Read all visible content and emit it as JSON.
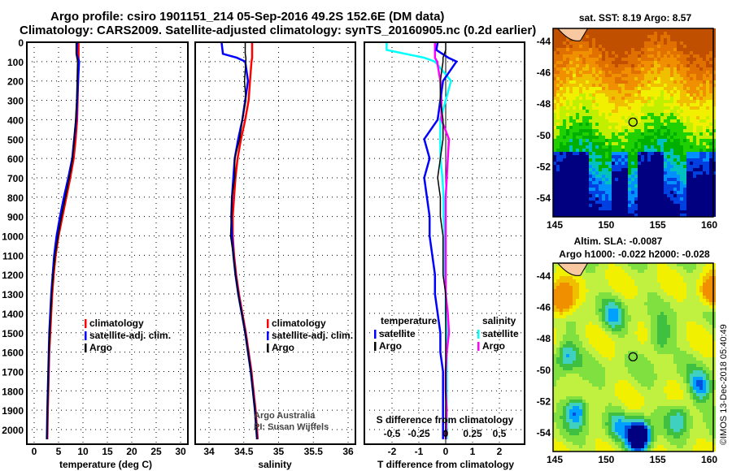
{
  "header": {
    "line1": "Argo profile: csiro 1901151_214 05-Sep-2016 49.2S 152.6E (DM data)",
    "line2": "Climatology: CARS2009. Satellite-adjusted climatology: synTS_20160905.nc (0.2d earlier)"
  },
  "credit": "©IMOS 13-Dec-2018 05:40:49",
  "colors": {
    "climatology": "#ff0000",
    "satellite": "#0000ff",
    "argo": "#000000",
    "sal_sat": "#00ffff",
    "sal_argo": "#ff00ff"
  },
  "chart_data": [
    {
      "type": "line",
      "id": "temperature",
      "xlabel": "temperature (deg C)",
      "xlim": [
        -1,
        31
      ],
      "ylim": [
        2050,
        0
      ],
      "xticks": [
        "0",
        "5",
        "10",
        "15",
        "20",
        "25",
        "30"
      ],
      "xtickvals": [
        0,
        5,
        10,
        15,
        20,
        25,
        30
      ],
      "yticks": [
        "0",
        "100",
        "200",
        "300",
        "400",
        "500",
        "600",
        "700",
        "800",
        "900",
        "1000",
        "1100",
        "1200",
        "1300",
        "1400",
        "1500",
        "1600",
        "1700",
        "1800",
        "1900",
        "2000"
      ],
      "legend": [
        "climatology",
        "satellite-adj. clim.",
        "Argo"
      ],
      "depth": [
        0,
        60,
        100,
        200,
        300,
        400,
        500,
        600,
        700,
        800,
        900,
        1000,
        1100,
        1200,
        1300,
        1400,
        1500,
        1600,
        1700,
        1800,
        1900,
        2050
      ],
      "series": [
        {
          "name": "climatology",
          "values": [
            9.1,
            9.1,
            9.1,
            9.0,
            8.9,
            8.8,
            8.5,
            8.1,
            7.4,
            6.6,
            5.8,
            5.0,
            4.4,
            4.0,
            3.7,
            3.5,
            3.3,
            3.1,
            3.0,
            2.9,
            2.8,
            2.7
          ]
        },
        {
          "name": "satellite-adj. clim.",
          "values": [
            8.8,
            8.7,
            9.2,
            9.0,
            8.8,
            8.6,
            8.2,
            7.8,
            7.0,
            6.1,
            5.3,
            4.6,
            4.1,
            3.8,
            3.5,
            3.3,
            3.1,
            3.0,
            2.9,
            2.8,
            2.7,
            2.6
          ]
        },
        {
          "name": "Argo",
          "values": [
            8.6,
            8.6,
            8.9,
            8.8,
            8.7,
            8.5,
            8.2,
            7.9,
            7.2,
            6.4,
            5.6,
            4.9,
            4.3,
            3.9,
            3.6,
            3.4,
            3.2,
            3.0,
            2.9,
            2.8,
            2.7,
            2.6
          ]
        }
      ]
    },
    {
      "type": "line",
      "id": "salinity",
      "xlabel": "salinity",
      "xlim": [
        33.8,
        36.1
      ],
      "ylim": [
        2050,
        0
      ],
      "xticks": [
        "34",
        "34.5",
        "35",
        "35.5",
        "36"
      ],
      "xtickvals": [
        34,
        34.5,
        35,
        35.5,
        36
      ],
      "legend": [
        "climatology",
        "satellite-adj. clim.",
        "Argo"
      ],
      "annotation": [
        "Argo Australia",
        "PI: Susan Wijffels"
      ],
      "depth": [
        0,
        60,
        80,
        100,
        200,
        300,
        400,
        500,
        600,
        700,
        800,
        900,
        1000,
        1100,
        1200,
        1300,
        1400,
        1500,
        1600,
        1700,
        1800,
        1900,
        2050
      ],
      "series": [
        {
          "name": "climatology",
          "values": [
            34.62,
            34.62,
            34.62,
            34.61,
            34.59,
            34.57,
            34.52,
            34.46,
            34.41,
            34.38,
            34.36,
            34.34,
            34.34,
            34.36,
            34.39,
            34.43,
            34.48,
            34.53,
            34.57,
            34.61,
            34.64,
            34.67,
            34.7
          ]
        },
        {
          "name": "satellite-adj. clim.",
          "values": [
            34.18,
            34.2,
            34.4,
            34.52,
            34.56,
            34.52,
            34.48,
            34.42,
            34.37,
            34.35,
            34.33,
            34.32,
            34.33,
            34.35,
            34.38,
            34.42,
            34.47,
            34.52,
            34.56,
            34.6,
            34.63,
            34.66,
            34.69
          ]
        },
        {
          "name": "Argo",
          "values": [
            34.52,
            34.52,
            34.53,
            34.53,
            34.51,
            34.53,
            34.48,
            34.44,
            34.37,
            34.37,
            34.33,
            34.32,
            34.31,
            34.35,
            34.38,
            34.42,
            34.47,
            34.52,
            34.56,
            34.6,
            34.63,
            34.66,
            34.69
          ]
        }
      ]
    },
    {
      "type": "line",
      "id": "difference",
      "xlabel": "T difference from climatology",
      "xlim": [
        -3,
        3
      ],
      "ylim": [
        2050,
        0
      ],
      "xticks": [
        "-2",
        "-1",
        "0",
        "1",
        "2"
      ],
      "xtickvals": [
        -2,
        -1,
        0,
        1,
        2
      ],
      "x2label": "S difference from climatology",
      "x2ticks": [
        "-0.5",
        "-0.25",
        "0",
        "0.25",
        "0.5"
      ],
      "legend_temperature": [
        "temperature",
        "satellite",
        "Argo"
      ],
      "legend_salinity": [
        "salinity",
        "satellite",
        "Argo"
      ],
      "depth": [
        0,
        40,
        80,
        100,
        200,
        300,
        400,
        500,
        600,
        700,
        800,
        900,
        1000,
        1100,
        1200,
        1300,
        1400,
        1500,
        1600,
        1700,
        1800,
        1900,
        2050
      ],
      "series": [
        {
          "name": "temperature satellite",
          "values": [
            -0.3,
            -0.35,
            0.1,
            0.4,
            -0.1,
            -0.2,
            -0.3,
            -0.8,
            -0.6,
            -0.8,
            -0.7,
            -0.6,
            -0.6,
            -0.5,
            -0.4,
            -0.4,
            -0.3,
            -0.2,
            -0.2,
            -0.1,
            -0.1,
            -0.1,
            -0.1
          ]
        },
        {
          "name": "temperature Argo",
          "values": [
            0.0,
            0.0,
            -0.1,
            -0.1,
            -0.2,
            -0.2,
            -0.1,
            -0.1,
            -0.2,
            -0.3,
            -0.2,
            -0.2,
            -0.1,
            -0.1,
            -0.1,
            0.0,
            0.0,
            0.0,
            0.0,
            0.0,
            0.0,
            0.0,
            0.0
          ]
        },
        {
          "name": "salinity satellite",
          "values": [
            -0.55,
            -0.55,
            -0.2,
            -0.1,
            0.05,
            0.0,
            -0.05,
            -0.05,
            -0.05,
            -0.03,
            -0.02,
            -0.02,
            -0.01,
            -0.01,
            -0.01,
            0.0,
            0.0,
            0.01,
            0.01,
            0.01,
            0.01,
            0.01,
            0.01
          ]
        },
        {
          "name": "salinity Argo",
          "values": [
            -0.1,
            -0.1,
            -0.1,
            -0.08,
            -0.05,
            -0.04,
            -0.04,
            0.03,
            0.02,
            0.01,
            0.0,
            0.0,
            0.0,
            0.0,
            0.0,
            0.0,
            0.02,
            0.03,
            0.01,
            0.0,
            0.0,
            0.01,
            0.0
          ]
        }
      ]
    },
    {
      "type": "heatmap",
      "id": "sst-map",
      "title": "sat. SST: 8.19 Argo: 8.57",
      "xticks": [
        "145",
        "150",
        "155",
        "160"
      ],
      "yticks": [
        "-44",
        "-46",
        "-48",
        "-50",
        "-52",
        "-54"
      ],
      "marker": {
        "lon": 152.6,
        "lat": -49.2
      }
    },
    {
      "type": "heatmap",
      "id": "sla-map",
      "title1": "Altim. SLA: -0.0087",
      "title2": "Argo h1000: -0.022 h2000: -0.028",
      "xticks": [
        "145",
        "150",
        "155",
        "160"
      ],
      "yticks": [
        "-44",
        "-46",
        "-48",
        "-50",
        "-52",
        "-54"
      ],
      "marker": {
        "lon": 152.6,
        "lat": -49.2
      }
    }
  ]
}
